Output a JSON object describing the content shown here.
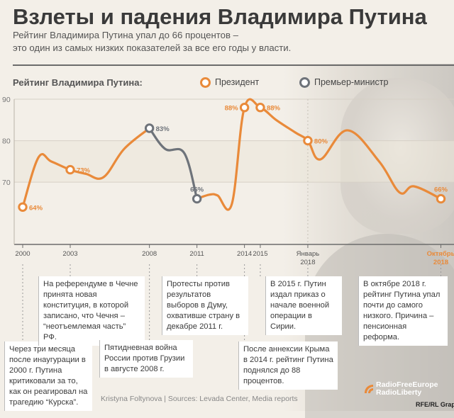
{
  "title": "Взлеты и падения Владимира Путина",
  "subtitle": [
    "Рейтинг Владимира Путина упал до 66 процентов –",
    "это один из самых низких показателей за все его годы у власти."
  ],
  "legend": {
    "title": "Рейтинг Владимира Путина:",
    "items": [
      {
        "label": "Президент",
        "color": "#e98a3a"
      },
      {
        "label": "Премьер-министр",
        "color": "#6e737a"
      }
    ]
  },
  "chart_data": {
    "type": "line",
    "title": "Рейтинг Владимира Путина:",
    "ylim": [
      55,
      90
    ],
    "yticks": [
      "90",
      "80",
      "70"
    ],
    "xticks": [
      {
        "label": "2000",
        "t": 0.0
      },
      {
        "label": "2003",
        "t": 3.0
      },
      {
        "label": "2008",
        "t": 8.0
      },
      {
        "label": "2011",
        "t": 11.0
      },
      {
        "label": "2014",
        "t": 14.0
      },
      {
        "label": "2015",
        "t": 15.0
      },
      {
        "label": "Январь\n2018",
        "t": 18.0
      },
      {
        "label": "Октябрь\n2018",
        "t": 26.4,
        "highlight": true
      }
    ],
    "series": [
      {
        "name": "Президент",
        "color": "#e98a3a",
        "points": [
          {
            "t": 0.0,
            "v": 64
          },
          {
            "t": 1.0,
            "v": 76
          },
          {
            "t": 1.8,
            "v": 75
          },
          {
            "t": 3.0,
            "v": 73
          },
          {
            "t": 4.0,
            "v": 72
          },
          {
            "t": 5.1,
            "v": 71.2
          },
          {
            "t": 6.4,
            "v": 78
          },
          {
            "t": 8.0,
            "v": 83
          }
        ]
      },
      {
        "name": "Премьер-министр",
        "color": "#6e737a",
        "points": [
          {
            "t": 8.0,
            "v": 83
          },
          {
            "t": 9.0,
            "v": 78
          },
          {
            "t": 10.2,
            "v": 77
          },
          {
            "t": 11.0,
            "v": 66
          }
        ]
      },
      {
        "name": "Президент",
        "color": "#e98a3a",
        "points": [
          {
            "t": 11.0,
            "v": 66
          },
          {
            "t": 11.8,
            "v": 67
          },
          {
            "t": 12.3,
            "v": 66.8
          },
          {
            "t": 13.2,
            "v": 64.7
          },
          {
            "t": 14.0,
            "v": 88
          },
          {
            "t": 15.0,
            "v": 88
          },
          {
            "t": 16.0,
            "v": 85
          },
          {
            "t": 17.2,
            "v": 82
          },
          {
            "t": 18.0,
            "v": 80
          },
          {
            "t": 18.8,
            "v": 75.5
          },
          {
            "t": 20.5,
            "v": 82.5
          },
          {
            "t": 22.5,
            "v": 75
          },
          {
            "t": 23.8,
            "v": 67.5
          },
          {
            "t": 24.7,
            "v": 69
          },
          {
            "t": 26.4,
            "v": 66
          }
        ]
      }
    ],
    "markers": [
      {
        "t": 0.0,
        "v": 64,
        "label": "64%",
        "color": "#e98a3a",
        "pos": "right"
      },
      {
        "t": 3.0,
        "v": 73,
        "label": "73%",
        "color": "#e98a3a",
        "pos": "right"
      },
      {
        "t": 8.0,
        "v": 83,
        "label": "83%",
        "color": "#6e737a",
        "pos": "right"
      },
      {
        "t": 11.0,
        "v": 66,
        "label": "66%",
        "color": "#6e737a",
        "pos": "above"
      },
      {
        "t": 14.0,
        "v": 88,
        "label": "88%",
        "color": "#e98a3a",
        "pos": "left"
      },
      {
        "t": 15.0,
        "v": 88,
        "label": "88%",
        "color": "#e98a3a",
        "pos": "right"
      },
      {
        "t": 18.0,
        "v": 80,
        "label": "80%",
        "color": "#e98a3a",
        "pos": "right"
      },
      {
        "t": 26.4,
        "v": 66,
        "label": "66%",
        "color": "#e98a3a",
        "pos": "above"
      }
    ]
  },
  "notes": [
    {
      "text": "Через три месяца после инаугурации в 2000 г. Путина критиковали за то, как он реагировал на трагедию “Курска”."
    },
    {
      "text": "На референдуме в Чечне принята новая конституция, в которой записано, что Чечня – “неотъемлемая часть” РФ."
    },
    {
      "text": "Пятидневная война России против Грузии в августе 2008 г."
    },
    {
      "text": "Протесты против результатов выборов в Думу, охвативше страну в декабре 2011 г."
    },
    {
      "text": "После аннексии Крыма в 2014 г. рейтинг Путина поднялся до 88 процентов."
    },
    {
      "text": "В 2015 г. Путин издал приказ о начале военной операции в Сирии."
    },
    {
      "text": "В октябре 2018 г. рейтинг Путина упал почти до самого низкого. Причина – пенсионная реформа."
    }
  ],
  "credit": "Kristyna Foltynova | Sources: Levada Center, Media reports",
  "logo": {
    "line1": "RadioFreeEurope",
    "line2": "RadioLiberty"
  },
  "logo_credit": "RFE/RL Graphics"
}
